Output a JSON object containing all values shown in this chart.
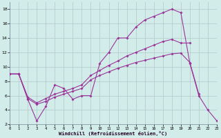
{
  "xlabel": "Windchill (Refroidissement éolien,°C)",
  "bg_color": "#d2ecea",
  "grid_color": "#b0c8c8",
  "line_color": "#993399",
  "xlim": [
    0,
    23
  ],
  "ylim": [
    2,
    19
  ],
  "yticks": [
    2,
    4,
    6,
    8,
    10,
    12,
    14,
    16,
    18
  ],
  "xticks": [
    0,
    1,
    2,
    3,
    4,
    5,
    6,
    7,
    8,
    9,
    10,
    11,
    12,
    13,
    14,
    15,
    16,
    17,
    18,
    19,
    20,
    21,
    22,
    23
  ],
  "main_x": [
    0,
    1,
    2,
    3,
    4,
    5,
    6,
    7,
    8,
    9,
    10,
    11,
    12,
    13,
    14,
    15,
    16,
    17,
    18,
    19,
    20,
    21,
    22,
    23
  ],
  "main_y": [
    9.0,
    9.0,
    5.5,
    2.5,
    4.5,
    7.5,
    7.0,
    5.5,
    6.0,
    6.0,
    10.5,
    12.0,
    14.0,
    14.0,
    15.5,
    16.5,
    17.0,
    17.5,
    18.0,
    17.5,
    10.5,
    6.0,
    4.0,
    2.5
  ],
  "upper_x": [
    0,
    1,
    2,
    3,
    4,
    5,
    6,
    7,
    8,
    9,
    10,
    11,
    12,
    13,
    14,
    15,
    16,
    17,
    18,
    19,
    20
  ],
  "upper_y": [
    9.0,
    9.0,
    5.8,
    5.0,
    5.6,
    6.2,
    6.6,
    7.0,
    7.5,
    8.8,
    9.5,
    10.2,
    10.8,
    11.5,
    12.0,
    12.5,
    13.0,
    13.5,
    13.8,
    13.3,
    13.3
  ],
  "lower_x": [
    0,
    1,
    2,
    3,
    4,
    5,
    6,
    7,
    8,
    9,
    10,
    11,
    12,
    13,
    14,
    15,
    16,
    17,
    18,
    19,
    20,
    21
  ],
  "lower_y": [
    9.0,
    9.0,
    5.6,
    4.8,
    5.2,
    5.8,
    6.2,
    6.6,
    7.0,
    8.2,
    8.8,
    9.3,
    9.8,
    10.2,
    10.6,
    10.9,
    11.2,
    11.5,
    11.8,
    11.9,
    10.6,
    6.2
  ]
}
